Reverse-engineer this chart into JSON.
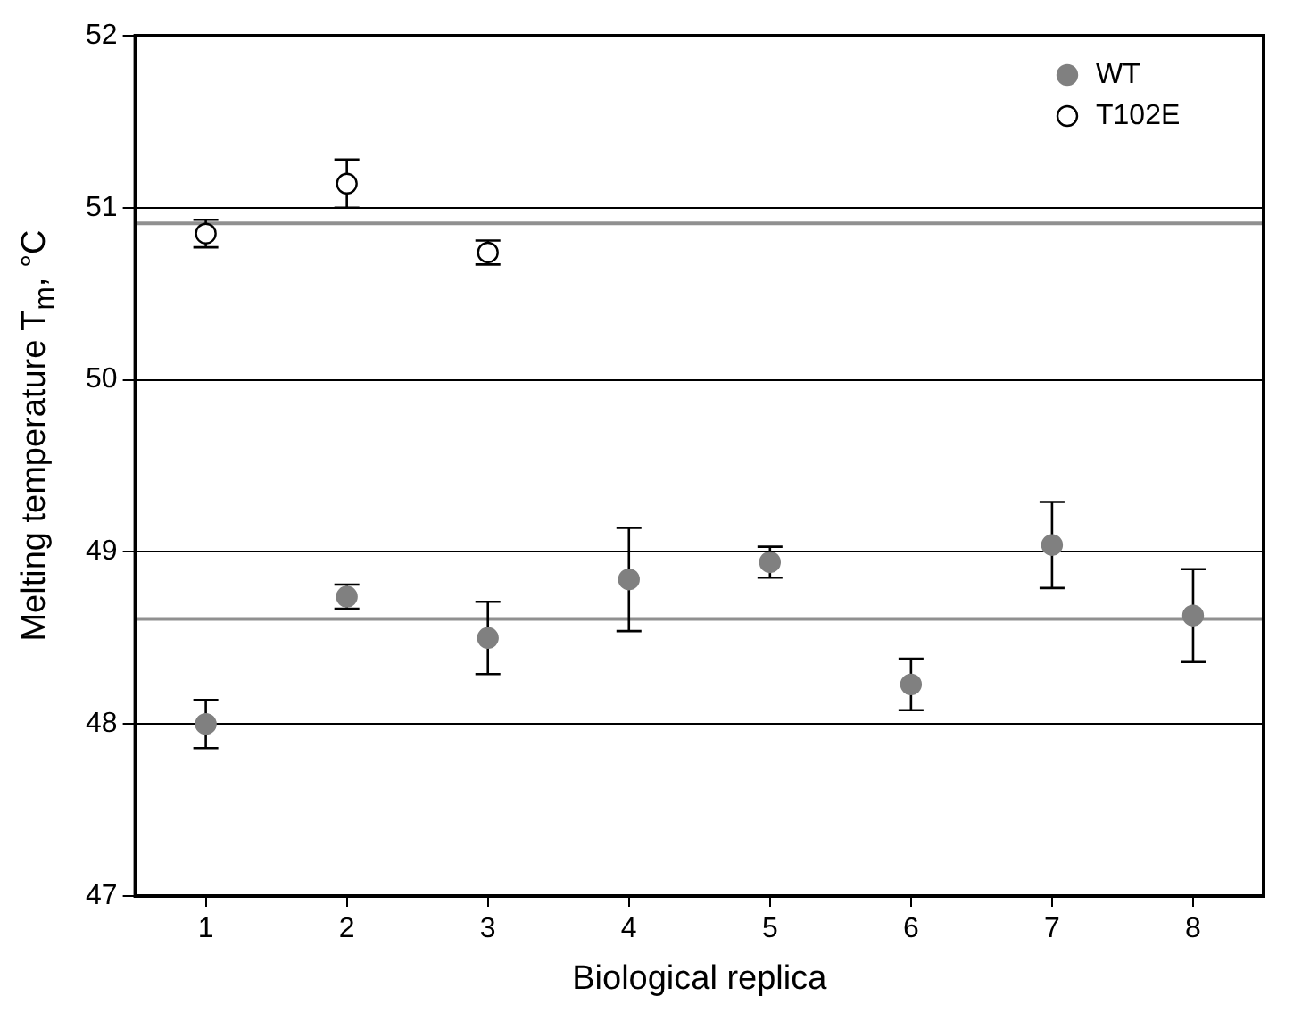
{
  "chart_data": {
    "type": "scatter",
    "xlabel": "Biological replica",
    "ylabel": "Melting temperature T$_{m}$, °C",
    "categories": [
      "1",
      "2",
      "3",
      "4",
      "5",
      "6",
      "7",
      "8"
    ],
    "series": [
      {
        "name": "WT",
        "color": "#808080",
        "values": [
          48.0,
          48.74,
          48.5,
          48.84,
          48.94,
          48.23,
          49.04,
          48.63
        ],
        "errors": [
          0.14,
          0.07,
          0.21,
          0.3,
          0.09,
          0.15,
          0.25,
          0.27
        ]
      },
      {
        "name": "T102E",
        "color": "#ffffff",
        "values": [
          50.85,
          51.14,
          50.74,
          null,
          null,
          null,
          null,
          null
        ],
        "errors": [
          0.08,
          0.14,
          0.07,
          null,
          null,
          null,
          null,
          null
        ]
      }
    ],
    "ylim": [
      47,
      52
    ],
    "yticks": [
      47,
      48,
      49,
      50,
      51,
      52
    ],
    "grid": "y",
    "marker": "circle",
    "legend": "top right",
    "ref_lines": [
      {
        "axis": "y",
        "value": 48.61,
        "color": "#909090"
      },
      {
        "axis": "y",
        "value": 50.91,
        "color": "#909090"
      }
    ]
  }
}
